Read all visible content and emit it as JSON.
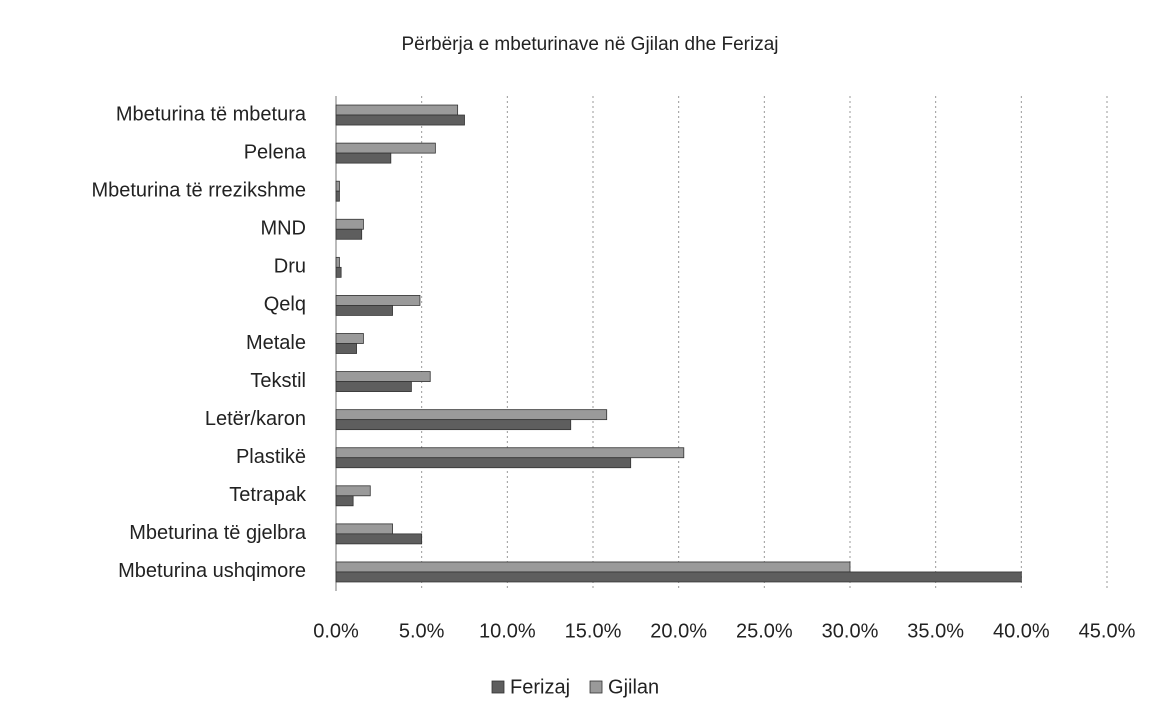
{
  "chart_data": {
    "type": "hbar",
    "title": "Përbërja e mbeturinave në Gjilan dhe Ferizaj",
    "categories": [
      "Mbeturina të mbetura",
      "Pelena",
      "Mbeturina të rrezikshme",
      "MND",
      "Dru",
      "Qelq",
      "Metale",
      "Tekstil",
      "Letër/karon",
      "Plastikë",
      "Tetrapak",
      "Mbeturina të gjelbra",
      "Mbeturina ushqimore"
    ],
    "series": [
      {
        "name": "Ferizaj",
        "color": "#5e5e5e",
        "values": [
          7.5,
          3.2,
          0.2,
          1.5,
          0.3,
          3.3,
          1.2,
          4.4,
          13.7,
          17.2,
          1.0,
          5.0,
          40.0
        ]
      },
      {
        "name": "Gjilan",
        "color": "#9a9a9a",
        "values": [
          7.1,
          5.8,
          0.2,
          1.6,
          0.2,
          4.9,
          1.6,
          5.5,
          15.8,
          20.3,
          2.0,
          3.3,
          30.0
        ]
      }
    ],
    "xlim": [
      0,
      45
    ],
    "xticks": [
      {
        "value": 0,
        "label": "0.0%"
      },
      {
        "value": 5,
        "label": "5.0%"
      },
      {
        "value": 10,
        "label": "10.0%"
      },
      {
        "value": 15,
        "label": "15.0%"
      },
      {
        "value": 20,
        "label": "20.0%"
      },
      {
        "value": 25,
        "label": "25.0%"
      },
      {
        "value": 30,
        "label": "30.0%"
      },
      {
        "value": 35,
        "label": "35.0%"
      },
      {
        "value": 40,
        "label": "40.0%"
      },
      {
        "value": 45,
        "label": "45.0%"
      }
    ],
    "grid": true,
    "legend": "bottom"
  }
}
